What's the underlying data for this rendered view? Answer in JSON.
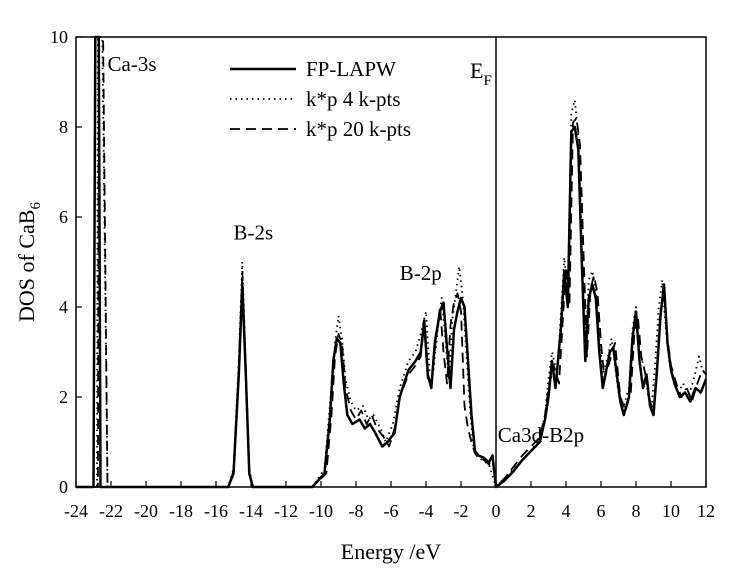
{
  "chart_data": {
    "type": "line",
    "title": "",
    "xlabel": "Energy /eV",
    "ylabel": "DOS of CaB",
    "ylabel_subscript": "6",
    "xlim": [
      -24,
      12
    ],
    "ylim": [
      0,
      10
    ],
    "xticks": [
      -24,
      -22,
      -20,
      -18,
      -16,
      -14,
      -12,
      -10,
      -8,
      -6,
      -4,
      -2,
      0,
      2,
      4,
      6,
      8,
      10,
      12
    ],
    "yticks": [
      0,
      2,
      4,
      6,
      8,
      10
    ],
    "grid": false,
    "legend_position": "top-center",
    "fermi_level": {
      "x": 0,
      "label": "E",
      "label_subscript": "F"
    },
    "annotations": [
      {
        "text": "Ca-3s",
        "x": -22.2,
        "y": 9.25
      },
      {
        "text": "B-2s",
        "x": -15,
        "y": 5.5
      },
      {
        "text": "B-2p",
        "x": -5.5,
        "y": 4.6
      },
      {
        "text": "Ca3d-B2p",
        "x": 0.1,
        "y": 1.0
      }
    ],
    "series": [
      {
        "name": "FP-LAPW",
        "style": "solid",
        "x": [
          -24,
          -23.0,
          -22.9,
          -22.85,
          -22.8,
          -22.7,
          -22.6,
          -22,
          -15.3,
          -15.0,
          -14.7,
          -14.5,
          -14.3,
          -14.1,
          -13.9,
          -10.5,
          -9.8,
          -9.5,
          -9.3,
          -9.1,
          -8.9,
          -8.7,
          -8.5,
          -8.2,
          -7.8,
          -7.5,
          -7.2,
          -6.9,
          -6.5,
          -6.2,
          -5.8,
          -5.5,
          -5.0,
          -4.6,
          -4.3,
          -4.1,
          -3.9,
          -3.7,
          -3.5,
          -3.2,
          -3.0,
          -2.8,
          -2.6,
          -2.4,
          -2.2,
          -2.0,
          -1.8,
          -1.6,
          -1.4,
          -1.2,
          -1.0,
          -0.7,
          -0.4,
          -0.2,
          0.0,
          0.5,
          1.0,
          1.5,
          2.0,
          2.5,
          2.8,
          3.0,
          3.2,
          3.4,
          3.7,
          3.9,
          4.1,
          4.3,
          4.5,
          4.7,
          4.9,
          5.1,
          5.3,
          5.5,
          5.7,
          5.9,
          6.1,
          6.3,
          6.5,
          6.7,
          6.9,
          7.1,
          7.3,
          7.6,
          7.8,
          8.0,
          8.2,
          8.4,
          8.6,
          8.8,
          9.0,
          9.2,
          9.4,
          9.6,
          9.8,
          10.0,
          10.2,
          10.5,
          10.8,
          11.1,
          11.4,
          11.7,
          12.0
        ],
        "values": [
          0,
          0,
          10,
          10,
          10,
          10,
          0,
          0,
          0,
          0.3,
          2.5,
          4.5,
          2.5,
          0.3,
          0,
          0,
          0.3,
          1.5,
          2.8,
          3.3,
          3.2,
          2.3,
          1.6,
          1.4,
          1.5,
          1.3,
          1.4,
          1.2,
          0.9,
          1.0,
          1.2,
          2.0,
          2.6,
          2.8,
          3.0,
          3.7,
          2.5,
          2.2,
          3.2,
          3.9,
          4.1,
          3.1,
          2.2,
          3.5,
          3.9,
          4.2,
          4.0,
          2.8,
          1.6,
          0.8,
          0.7,
          0.65,
          0.55,
          0.7,
          0.0,
          0.15,
          0.35,
          0.6,
          0.8,
          1.0,
          1.5,
          2.0,
          2.8,
          2.2,
          3.5,
          4.8,
          4.0,
          7.9,
          8.0,
          7.5,
          5.0,
          2.8,
          4.2,
          4.5,
          4.2,
          3.0,
          2.2,
          2.6,
          3.0,
          3.1,
          2.5,
          1.9,
          1.6,
          2.0,
          3.3,
          3.9,
          2.8,
          2.2,
          2.5,
          1.8,
          1.6,
          2.6,
          3.8,
          4.5,
          3.2,
          2.6,
          2.3,
          2.0,
          2.1,
          1.9,
          2.2,
          2.1,
          2.4
        ]
      },
      {
        "name": "k*p 4 k-pts",
        "style": "dotted",
        "x": [
          -24,
          -22.9,
          -22.8,
          -22.75,
          -22.7,
          -22.6,
          -22.5,
          -22.2,
          -22,
          -15.3,
          -15.0,
          -14.7,
          -14.5,
          -14.3,
          -14.1,
          -13.9,
          -10.5,
          -9.8,
          -9.5,
          -9.2,
          -9.0,
          -8.8,
          -8.6,
          -8.3,
          -8.0,
          -7.6,
          -7.3,
          -7.0,
          -6.6,
          -6.3,
          -5.9,
          -5.5,
          -5.0,
          -4.6,
          -4.3,
          -4.0,
          -3.8,
          -3.6,
          -3.3,
          -3.1,
          -2.9,
          -2.7,
          -2.5,
          -2.3,
          -2.1,
          -1.9,
          -1.7,
          -1.5,
          -1.3,
          -1.1,
          -0.8,
          -0.4,
          0.0,
          0.5,
          1.0,
          1.5,
          2.0,
          2.5,
          2.8,
          3.0,
          3.2,
          3.5,
          3.7,
          3.9,
          4.1,
          4.3,
          4.5,
          4.7,
          4.9,
          5.1,
          5.3,
          5.5,
          5.7,
          5.9,
          6.1,
          6.4,
          6.6,
          6.8,
          7.0,
          7.3,
          7.6,
          7.8,
          8.0,
          8.2,
          8.5,
          8.7,
          8.9,
          9.1,
          9.3,
          9.5,
          9.7,
          9.9,
          10.1,
          10.4,
          10.7,
          11.0,
          11.3,
          11.6,
          11.8,
          12.0
        ],
        "values": [
          0,
          0,
          0,
          10,
          10,
          10,
          10,
          0,
          0,
          0,
          0.4,
          2.8,
          5.0,
          2.7,
          0.4,
          0,
          0,
          0.4,
          1.8,
          3.2,
          3.8,
          3.3,
          2.4,
          1.9,
          1.7,
          1.8,
          1.5,
          1.6,
          1.3,
          1.0,
          1.4,
          2.2,
          2.8,
          3.0,
          3.4,
          3.9,
          2.6,
          2.5,
          3.6,
          4.2,
          3.3,
          2.4,
          3.7,
          4.3,
          4.9,
          4.2,
          3.0,
          1.8,
          0.9,
          0.7,
          0.6,
          0.5,
          0.0,
          0.2,
          0.4,
          0.6,
          0.8,
          1.1,
          1.6,
          2.4,
          3.0,
          2.5,
          3.8,
          5.1,
          4.2,
          8.3,
          8.6,
          7.8,
          5.4,
          3.0,
          4.6,
          4.8,
          4.4,
          3.3,
          2.5,
          2.9,
          3.3,
          2.7,
          2.1,
          1.8,
          2.2,
          3.5,
          4.0,
          3.0,
          2.6,
          2.0,
          1.8,
          2.8,
          4.0,
          4.6,
          3.5,
          2.8,
          2.4,
          2.1,
          2.3,
          2.0,
          2.4,
          2.9,
          2.6,
          2.5
        ]
      },
      {
        "name": "k*p 20 k-pts",
        "style": "dashed",
        "x": [
          -24,
          -22.85,
          -22.75,
          -22.7,
          -22.65,
          -22.55,
          -22.45,
          -22.2,
          -22,
          -15.3,
          -15.0,
          -14.7,
          -14.5,
          -14.3,
          -14.1,
          -13.9,
          -10.5,
          -9.7,
          -9.4,
          -9.2,
          -9.0,
          -8.8,
          -8.6,
          -8.3,
          -8.0,
          -7.7,
          -7.4,
          -7.1,
          -6.8,
          -6.4,
          -6.1,
          -5.8,
          -5.5,
          -5.0,
          -4.6,
          -4.3,
          -4.1,
          -3.9,
          -3.7,
          -3.4,
          -3.2,
          -3.0,
          -2.8,
          -2.6,
          -2.4,
          -2.2,
          -2.0,
          -1.8,
          -1.6,
          -1.4,
          -1.2,
          -1.0,
          -0.7,
          -0.4,
          -0.2,
          0.0,
          0.5,
          1.0,
          1.5,
          2.0,
          2.5,
          2.8,
          3.0,
          3.3,
          3.6,
          3.8,
          4.0,
          4.2,
          4.4,
          4.6,
          4.8,
          5.0,
          5.2,
          5.4,
          5.6,
          5.8,
          6.0,
          6.2,
          6.5,
          6.8,
          7.1,
          7.4,
          7.7,
          7.9,
          8.1,
          8.3,
          8.6,
          8.8,
          9.0,
          9.2,
          9.4,
          9.6,
          9.8,
          10.0,
          10.3,
          10.6,
          10.9,
          11.2,
          11.5,
          11.8,
          12.0
        ],
        "values": [
          0,
          0,
          0,
          10,
          10,
          10,
          10,
          0,
          0,
          0,
          0.35,
          2.6,
          4.8,
          2.6,
          0.35,
          0,
          0,
          0.3,
          1.6,
          2.9,
          3.4,
          3.2,
          2.2,
          1.7,
          1.5,
          1.7,
          1.4,
          1.6,
          1.3,
          1.1,
          0.9,
          1.3,
          2.0,
          2.5,
          2.7,
          2.9,
          3.6,
          2.4,
          2.3,
          3.4,
          4.0,
          3.0,
          2.3,
          3.6,
          4.1,
          4.3,
          3.9,
          1.8,
          1.3,
          1.0,
          0.75,
          0.65,
          0.6,
          0.5,
          0.6,
          0.0,
          0.2,
          0.45,
          0.7,
          0.9,
          1.1,
          1.6,
          2.2,
          2.7,
          2.3,
          3.6,
          4.9,
          4.1,
          8.1,
          8.2,
          7.6,
          5.2,
          2.9,
          4.4,
          4.7,
          4.3,
          3.2,
          2.4,
          2.8,
          3.2,
          2.0,
          1.7,
          2.1,
          3.4,
          3.8,
          2.9,
          2.4,
          1.9,
          1.7,
          2.7,
          3.9,
          4.4,
          3.3,
          2.7,
          2.3,
          2.0,
          2.2,
          1.9,
          2.3,
          2.6,
          2.5
        ]
      }
    ]
  }
}
